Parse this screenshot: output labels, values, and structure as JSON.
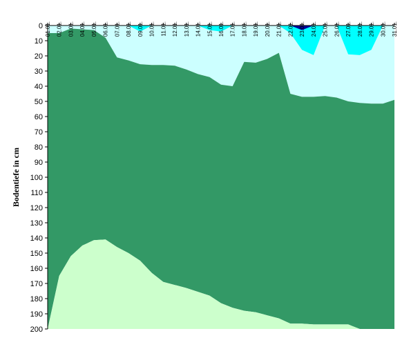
{
  "chart_data": {
    "type": "area",
    "title": "",
    "xlabel": "",
    "ylabel": "Bodentiefe in cm",
    "x_categories": [
      "01.01.",
      "02.01.",
      "03.01.",
      "04.01.",
      "05.01.",
      "06.01.",
      "07.01.",
      "08.01.",
      "09.01.",
      "10.01.",
      "11.01.",
      "12.01.",
      "13.01.",
      "14.01.",
      "15.01.",
      "16.01.",
      "17.01.",
      "18.01.",
      "19.01.",
      "20.01.",
      "21.01.",
      "22.01.",
      "23.01.",
      "24.01.",
      "25.01.",
      "26.01.",
      "27.01.",
      "28.01.",
      "29.01.",
      "30.01.",
      "31.01."
    ],
    "y_ticks": [
      0,
      10,
      20,
      30,
      40,
      50,
      60,
      70,
      80,
      90,
      100,
      110,
      120,
      130,
      140,
      150,
      160,
      170,
      180,
      190,
      200
    ],
    "ylim": [
      0,
      200
    ],
    "y_inverted": true,
    "grid": false,
    "legend": "none",
    "colors": {
      "light_cyan": "#ccffff",
      "cyan": "#00ffff",
      "dark_blue": "#000099",
      "green": "#339966",
      "light_green": "#ccffcc"
    },
    "series": [
      {
        "fill": "light_cyan",
        "top_depth": [
          0,
          0,
          0,
          0,
          0,
          0,
          0,
          0,
          0,
          0,
          0,
          0,
          0,
          0,
          0,
          0,
          0,
          0,
          0,
          0,
          0,
          0,
          0,
          0,
          0,
          0,
          0,
          0,
          0,
          0,
          0
        ],
        "bottom_depth": [
          5,
          5,
          2,
          2.5,
          3,
          8,
          21,
          23,
          25.5,
          26,
          26,
          26.5,
          29,
          32,
          34,
          39,
          40,
          24,
          24.5,
          22,
          18,
          45,
          47,
          47,
          46.5,
          47.5,
          50,
          51,
          51.5,
          51.5,
          49
        ]
      },
      {
        "fill": "cyan",
        "points": [
          {
            "x": "08.01.",
            "depth": 0
          },
          {
            "x": "09.01.",
            "depth": 4
          },
          {
            "x": "10.01.",
            "depth": 0
          },
          {
            "x": "14.01.",
            "depth": 0
          },
          {
            "x": "15.01.",
            "depth": 3
          },
          {
            "x": "16.01.",
            "depth": 4
          },
          {
            "x": "17.01.",
            "depth": 0
          },
          {
            "x": "21.01.",
            "depth": 0
          },
          {
            "x": "22.01.",
            "depth": 5
          },
          {
            "x": "23.01.",
            "depth": 16
          },
          {
            "x": "24.01.",
            "depth": 19.5
          },
          {
            "x": "25.01.",
            "depth": 0
          },
          {
            "x": "26.01.",
            "depth": 0
          },
          {
            "x": "27.01.",
            "depth": 19
          },
          {
            "x": "28.01.",
            "depth": 19.5
          },
          {
            "x": "29.01.",
            "depth": 16
          },
          {
            "x": "30.01.",
            "depth": 0
          }
        ]
      },
      {
        "fill": "dark_blue",
        "points": [
          {
            "x": "22.01.",
            "depth": 0
          },
          {
            "x": "23.01.",
            "depth": 3
          },
          {
            "x": "24.01.",
            "depth": 0
          }
        ]
      },
      {
        "fill": "green",
        "top_depth": [
          5,
          5,
          2,
          2.5,
          3,
          8,
          21,
          23,
          25.5,
          26,
          26,
          26.5,
          29,
          32,
          34,
          39,
          40,
          24,
          24.5,
          22,
          18,
          45,
          47,
          47,
          46.5,
          47.5,
          50,
          51,
          51.5,
          51.5,
          49
        ],
        "bottom_depth": [
          200,
          165,
          152,
          145,
          141.5,
          141,
          146,
          150,
          155,
          163,
          169,
          171,
          173,
          175.5,
          178,
          183,
          186,
          188,
          189,
          191,
          193,
          196.5,
          196.5,
          197,
          197,
          197,
          197,
          200,
          200,
          200,
          200
        ]
      },
      {
        "fill": "light_green",
        "top_depth": [
          200,
          165,
          152,
          145,
          141.5,
          141,
          146,
          150,
          155,
          163,
          169,
          171,
          173,
          175.5,
          178,
          183,
          186,
          188,
          189,
          191,
          193,
          196.5,
          196.5,
          197,
          197,
          197,
          197,
          200,
          200,
          200,
          200
        ],
        "bottom_depth": [
          200,
          200,
          200,
          200,
          200,
          200,
          200,
          200,
          200,
          200,
          200,
          200,
          200,
          200,
          200,
          200,
          200,
          200,
          200,
          200,
          200,
          200,
          200,
          200,
          200,
          200,
          200,
          200,
          200,
          200,
          200
        ]
      }
    ]
  }
}
